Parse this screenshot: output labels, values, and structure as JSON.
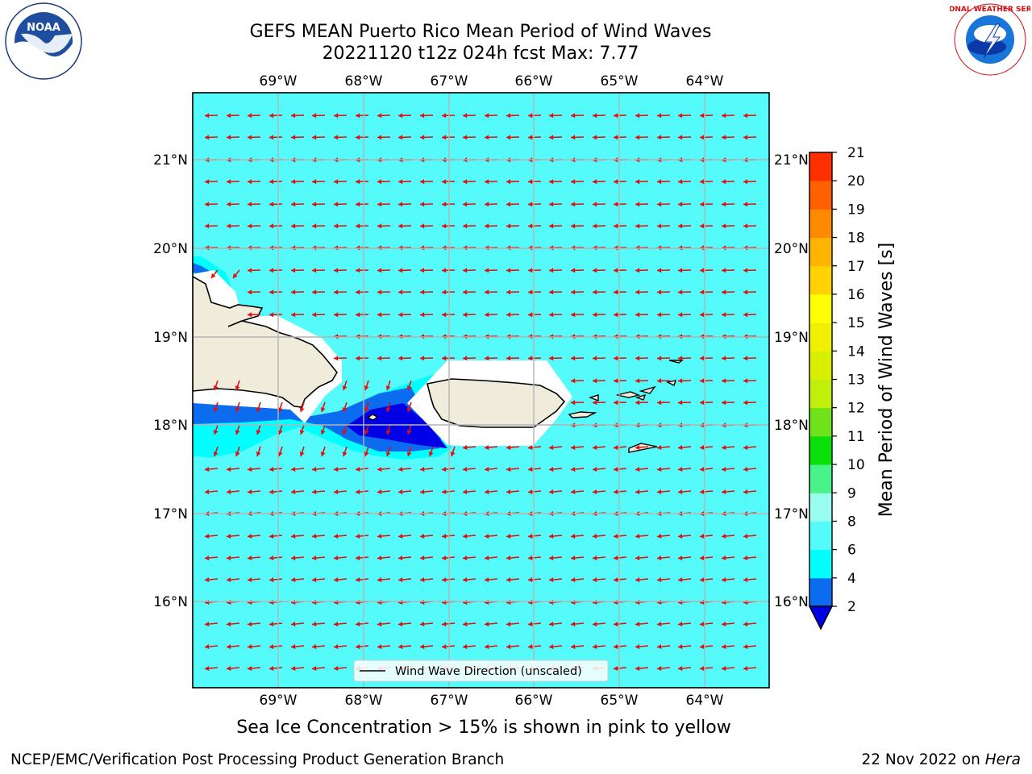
{
  "header": {
    "title_line1": "GEFS MEAN Puerto Rico Mean Period of Wind Waves",
    "title_line2": "20221120 t12z 024h fcst   Max: 7.77"
  },
  "map": {
    "lon_labels": [
      "69°W",
      "68°W",
      "67°W",
      "66°W",
      "65°W",
      "64°W"
    ],
    "lat_labels": [
      "21°N",
      "20°N",
      "19°N",
      "18°N",
      "17°N",
      "16°N"
    ],
    "legend_label": "Wind Wave Direction (unscaled)",
    "background_color": "#55fbfb",
    "arrow_color": "#e01010",
    "land_color": "#efecdc"
  },
  "colorbar": {
    "label": "Mean Period of Wind Waves [s]",
    "ticks": [
      "2",
      "4",
      "6",
      "8",
      "9",
      "10",
      "11",
      "12",
      "13",
      "14",
      "15",
      "16",
      "17",
      "18",
      "19",
      "20",
      "21"
    ],
    "colors": [
      "#0b6cf0",
      "#00ffff",
      "#55fbfb",
      "#99fdf0",
      "#4af28a",
      "#0be00b",
      "#6fe21a",
      "#bfef0a",
      "#d8f000",
      "#f0f000",
      "#ffff00",
      "#ffd200",
      "#ffb400",
      "#ff8a00",
      "#ff6000",
      "#ff3000",
      "#ff0000"
    ],
    "under_color": "#0000e6"
  },
  "notes": {
    "ice": "Sea Ice Concentration > 15% is shown in pink to yellow"
  },
  "footer": {
    "left": "NCEP/EMC/Verification Post Processing Product Generation Branch",
    "date": "22 Nov 2022 on ",
    "machine": "Hera"
  },
  "logos": {
    "noaa_text": "NOAA",
    "nws_text": "NATIONAL WEATHER SERVICE"
  }
}
